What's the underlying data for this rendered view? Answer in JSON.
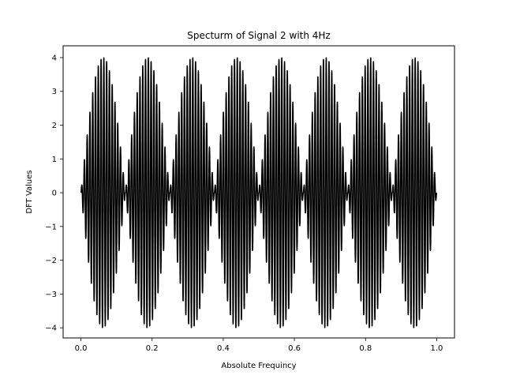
{
  "chart_data": {
    "type": "line",
    "title": "Specturm of Signal 2 with 4Hz",
    "xlabel": "Absolute Frequincy",
    "ylabel": "DFT Values",
    "xlim": [
      -0.05,
      1.05
    ],
    "ylim": [
      -4.3,
      4.35
    ],
    "x_ticks": [
      0.0,
      0.2,
      0.4,
      0.6,
      0.8,
      1.0
    ],
    "x_tick_labels": [
      "0.0",
      "0.2",
      "0.4",
      "0.6",
      "0.8",
      "1.0"
    ],
    "y_ticks": [
      -4,
      -3,
      -2,
      -1,
      0,
      1,
      2,
      3,
      4
    ],
    "y_tick_labels": [
      "−4",
      "−3",
      "−2",
      "−1",
      "0",
      "1",
      "2",
      "3",
      "4"
    ],
    "grid": false,
    "legend": "none",
    "series": [
      {
        "color": "#000000",
        "x_range": [
          0.0,
          1.0
        ],
        "amplitude": 4,
        "carrier_cycles": 128,
        "envelope_cycles": 8
      }
    ]
  }
}
